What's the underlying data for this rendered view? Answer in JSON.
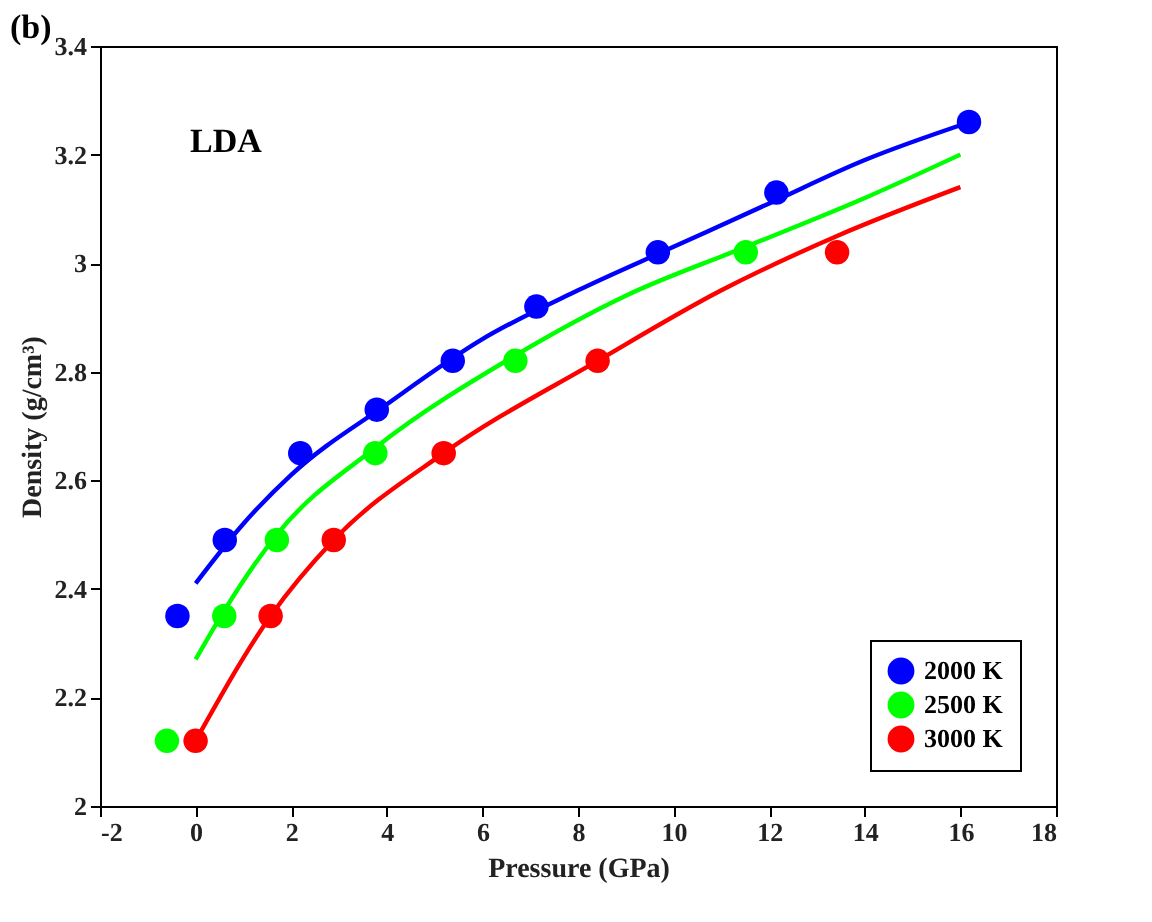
{
  "chart_data": {
    "type": "scatter",
    "title": "(b)",
    "xlabel": "Pressure (GPa)",
    "ylabel": "Density (g/cm³)",
    "annotations": [
      "LDA"
    ],
    "series": [
      {
        "name": "2000 K",
        "color": "#0000ff",
        "x": [
          -0.38,
          0.61,
          2.19,
          3.79,
          5.38,
          7.13,
          9.67,
          12.15,
          16.18
        ],
        "values": [
          2.35,
          2.49,
          2.65,
          2.73,
          2.82,
          2.92,
          3.02,
          3.13,
          3.26
        ]
      },
      {
        "name": "2500 K",
        "color": "#00ff00",
        "x": [
          -0.6,
          0.6,
          1.7,
          3.76,
          6.69,
          11.51
        ],
        "values": [
          2.12,
          2.35,
          2.49,
          2.65,
          2.82,
          3.02
        ]
      },
      {
        "name": "3000 K",
        "color": "#ff0000",
        "x": [
          0.0,
          1.57,
          2.89,
          5.19,
          8.41,
          13.42
        ],
        "values": [
          2.12,
          2.35,
          2.49,
          2.65,
          2.82,
          3.02
        ]
      },
      {
        "type": "line",
        "marker": "none",
        "color": "#0000ff",
        "x": [
          0,
          1,
          2,
          4,
          6,
          8,
          10,
          12,
          14,
          16.2
        ],
        "values": [
          2.41,
          2.52,
          2.61,
          2.74,
          2.86,
          2.95,
          3.03,
          3.11,
          3.19,
          3.26
        ]
      },
      {
        "type": "line",
        "marker": "none",
        "color": "#00ff00",
        "x": [
          0,
          0.6,
          1.7,
          3.76,
          6.69,
          9,
          11.51,
          14,
          16
        ],
        "values": [
          2.27,
          2.36,
          2.5,
          2.66,
          2.83,
          2.94,
          3.03,
          3.12,
          3.2
        ]
      },
      {
        "type": "line",
        "marker": "none",
        "color": "#ff0000",
        "x": [
          0,
          1.57,
          2.89,
          5.19,
          8.41,
          11,
          13.42,
          16
        ],
        "values": [
          2.12,
          2.35,
          2.49,
          2.65,
          2.82,
          2.95,
          3.05,
          3.14
        ]
      }
    ],
    "xlim": [
      -2,
      18
    ],
    "xticks": [
      -2,
      0,
      2,
      4,
      6,
      8,
      10,
      12,
      14,
      16,
      18
    ],
    "ylim": [
      2,
      3.4
    ],
    "yticks": [
      {
        "value": 2,
        "label": "2"
      },
      2.2,
      2.4,
      2.6,
      2.8,
      {
        "value": 3,
        "label": "3"
      },
      3.2,
      3.4
    ],
    "grid": false,
    "legend": "bottom right",
    "marker": "circle",
    "line_style": "solid"
  }
}
